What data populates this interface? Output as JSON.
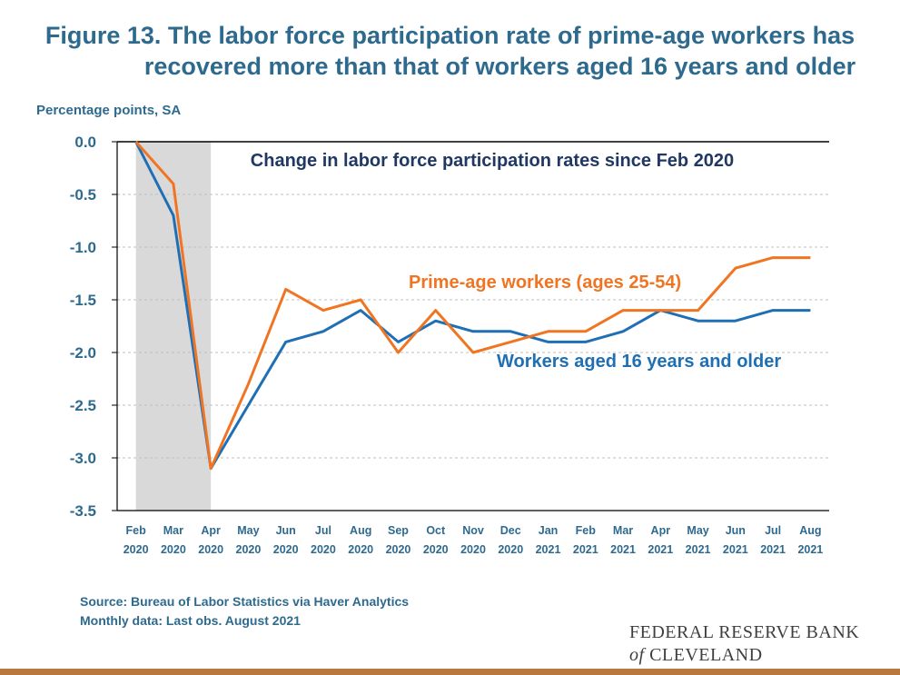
{
  "title": {
    "line1": "Figure 13. The labor force participation rate of prime-age workers has",
    "line2": "recovered more than that of workers aged 16 years and older"
  },
  "units": "Percentage points,  SA",
  "chart_data": {
    "type": "line",
    "title": "Change in labor force participation rates since Feb 2020",
    "ylabel": "Percentage points,  SA",
    "ylim": [
      -3.5,
      0.0
    ],
    "yticks": [
      "0.0",
      "-0.5",
      "-1.0",
      "-1.5",
      "-2.0",
      "-2.5",
      "-3.0",
      "-3.5"
    ],
    "ytick_values": [
      0.0,
      -0.5,
      -1.0,
      -1.5,
      -2.0,
      -2.5,
      -3.0,
      -3.5
    ],
    "grid": true,
    "categories": [
      "Feb 2020",
      "Mar 2020",
      "Apr 2020",
      "May 2020",
      "Jun 2020",
      "Jul 2020",
      "Aug 2020",
      "Sep 2020",
      "Oct 2020",
      "Nov 2020",
      "Dec 2020",
      "Jan 2021",
      "Feb 2021",
      "Mar 2021",
      "Apr 2021",
      "May 2021",
      "Jun 2021",
      "Jul 2021",
      "Aug 2021"
    ],
    "category_labels": [
      [
        "Feb",
        "2020"
      ],
      [
        "Mar",
        "2020"
      ],
      [
        "Apr",
        "2020"
      ],
      [
        "May",
        "2020"
      ],
      [
        "Jun",
        "2020"
      ],
      [
        "Jul",
        "2020"
      ],
      [
        "Aug",
        "2020"
      ],
      [
        "Sep",
        "2020"
      ],
      [
        "Oct",
        "2020"
      ],
      [
        "Nov",
        "2020"
      ],
      [
        "Dec",
        "2020"
      ],
      [
        "Jan",
        "2021"
      ],
      [
        "Feb",
        "2021"
      ],
      [
        "Mar",
        "2021"
      ],
      [
        "Apr",
        "2021"
      ],
      [
        "May",
        "2021"
      ],
      [
        "Jun",
        "2021"
      ],
      [
        "Jul",
        "2021"
      ],
      [
        "Aug",
        "2021"
      ]
    ],
    "recession_shading": {
      "from": "Feb 2020",
      "to": "Apr 2020",
      "color": "#D9D9D9"
    },
    "series": [
      {
        "name": "Workers aged 16 years and older",
        "color": "#1F6FB5",
        "values": [
          0.0,
          -0.7,
          -3.1,
          -2.5,
          -1.9,
          -1.8,
          -1.6,
          -1.9,
          -1.7,
          -1.8,
          -1.8,
          -1.9,
          -1.9,
          -1.8,
          -1.6,
          -1.7,
          -1.7,
          -1.6,
          -1.6
        ]
      },
      {
        "name": "Prime-age workers (ages 25-54)",
        "color": "#F07522",
        "values": [
          0.0,
          -0.4,
          -3.1,
          -2.3,
          -1.4,
          -1.6,
          -1.5,
          -2.0,
          -1.6,
          -2.0,
          -1.9,
          -1.8,
          -1.8,
          -1.6,
          -1.6,
          -1.6,
          -1.2,
          -1.1,
          -1.1
        ]
      }
    ]
  },
  "footnotes": {
    "source": "Source: Bureau of Labor Statistics via Haver Analytics",
    "monthly": "Monthly data: Last obs. August 2021"
  },
  "logo": {
    "line1": "FEDERAL RESERVE BANK",
    "of": "of",
    "line2": "CLEVELAND"
  },
  "colors": {
    "title": "#2E6A8E",
    "chart_title": "#1F3864",
    "axis_labels": "#2E6A8E",
    "bottom_bar": "#B9783E"
  }
}
